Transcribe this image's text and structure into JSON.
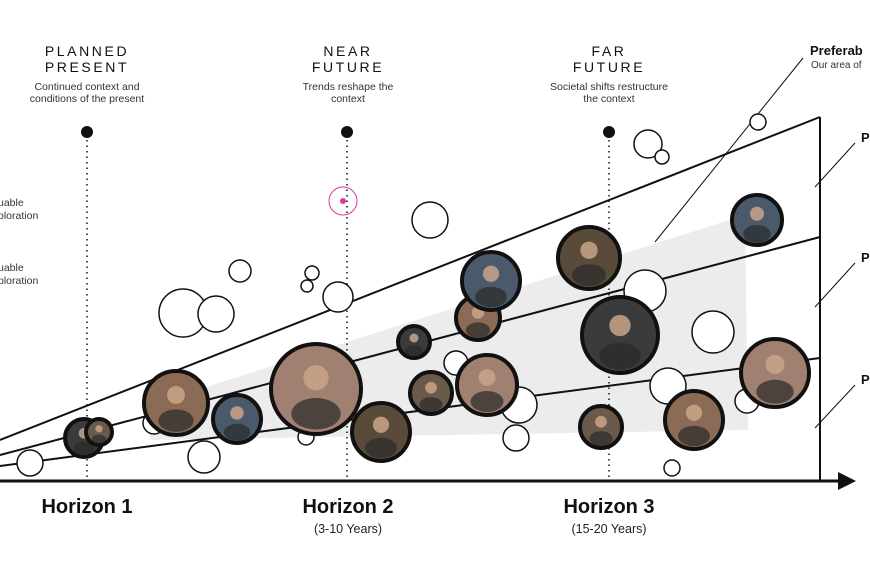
{
  "eras": [
    {
      "title": "PLANNED\nPRESENT",
      "subtitle": "Continued context and\nconditions of the present"
    },
    {
      "title": "NEAR\nFUTURE",
      "subtitle": "Trends reshape the\ncontext"
    },
    {
      "title": "FAR\nFUTURE",
      "subtitle": "Societal shifts restructure\nthe context"
    }
  ],
  "horizons": [
    {
      "label": "Horizon 1",
      "years": ""
    },
    {
      "label": "Horizon 2",
      "years": "(3-10 Years)"
    },
    {
      "label": "Horizon 3",
      "years": "(15-20 Years)"
    }
  ],
  "left_notes": [
    "uable\nploration",
    "uable\nploration"
  ],
  "right_labels": {
    "preferable": "Preferab",
    "preferable_sub": "Our area of",
    "p1": "P",
    "p2": "P",
    "p3": "P"
  },
  "colors": {
    "line": "#111111",
    "band": "#ececec",
    "accent_pink": "#e0389a",
    "photo_border": "#111111",
    "photo_fill": [
      "#3b3b3b",
      "#6a5a4c",
      "#8b6b55",
      "#4a5a6a",
      "#a08070",
      "#5a4a3a"
    ]
  }
}
